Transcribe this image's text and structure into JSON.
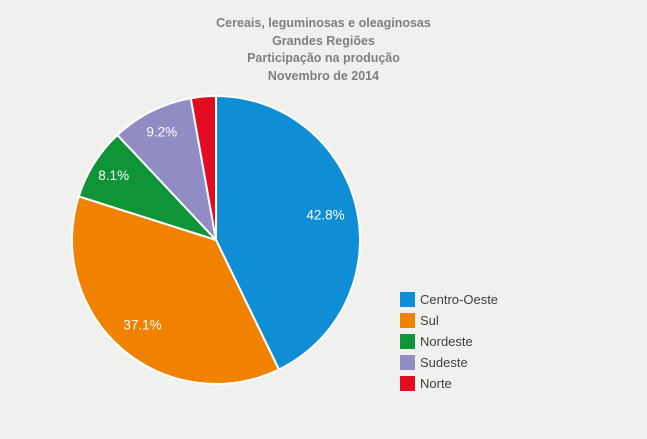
{
  "title": {
    "lines": [
      "Cereais, leguminosas e oleaginosas",
      "Grandes Regiões",
      "Participação na produção",
      "Novembro de 2014"
    ],
    "color": "#7f7f7f"
  },
  "chart_data": {
    "type": "pie",
    "title": "Cereais, leguminosas e oleaginosas - Grandes Regiões - Participação na produção - Novembro de 2014",
    "categories": [
      "Centro-Oeste",
      "Sul",
      "Nordeste",
      "Sudeste",
      "Norte"
    ],
    "values": [
      42.8,
      37.1,
      8.1,
      9.2,
      2.8
    ],
    "labels": [
      "42.8%",
      "37.1%",
      "8.1%",
      "9.2%",
      ""
    ],
    "colors": [
      "#0f8ed5",
      "#f08200",
      "#0f9437",
      "#918cc3",
      "#e30b20"
    ],
    "start_angle_deg": 0,
    "direction": "clockwise",
    "legend_position": "right",
    "label_color": "#ffffff",
    "slice_border_color": "#ffffff",
    "background_color": "#f0f0ee"
  }
}
